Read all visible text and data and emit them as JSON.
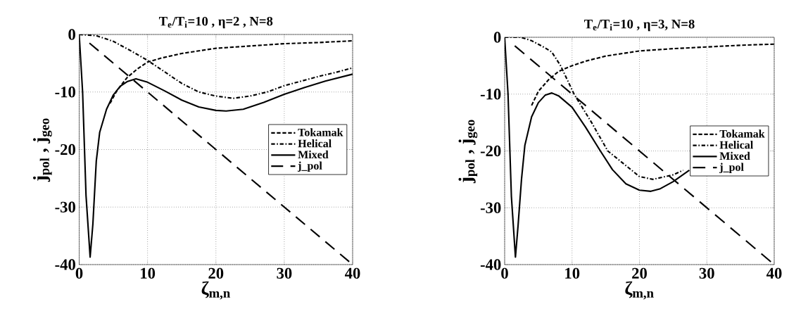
{
  "chart_data": [
    {
      "type": "line",
      "title": "T$_{e}$/T$_{i}$=10 , η=2 , N=8",
      "xlabel": "ζ$_{m,n}$",
      "ylabel": "j$_{pol}$ , j$_{geo}$",
      "xlim": [
        0,
        40
      ],
      "ylim": [
        -40,
        0
      ],
      "xticks": [
        0,
        10,
        20,
        30,
        40
      ],
      "yticks": [
        -40,
        -30,
        -20,
        -10,
        0
      ],
      "grid": true,
      "legend": "right",
      "series": [
        {
          "name": "Tokamak",
          "color": "#000000",
          "line_style": "dashed",
          "x": [
            4.5,
            5.5,
            7,
            8.5,
            10,
            12,
            15,
            20,
            25,
            30,
            35,
            40
          ],
          "values": [
            -12,
            -9.8,
            -7.5,
            -6,
            -4.8,
            -4.1,
            -3.3,
            -2.4,
            -2.0,
            -1.6,
            -1.4,
            -1.1
          ]
        },
        {
          "name": "Helical",
          "color": "#000000",
          "line_style": "dashdot",
          "x": [
            0,
            2.5,
            5,
            7.5,
            10,
            12.5,
            15,
            17.5,
            20,
            22.5,
            25,
            27.5,
            30,
            32.5,
            35,
            37.5,
            40
          ],
          "values": [
            0,
            -0.2,
            -1.2,
            -2.8,
            -4.5,
            -6.5,
            -8.5,
            -10,
            -10.7,
            -11.1,
            -10.7,
            -10,
            -8.9,
            -8.1,
            -7.3,
            -6.6,
            -5.8
          ]
        },
        {
          "name": "Mixed",
          "color": "#000000",
          "line_style": "solid",
          "x": [
            0,
            0.5,
            1,
            1.6,
            2,
            2.5,
            3,
            4,
            5,
            6,
            7,
            8.3,
            10,
            12.5,
            15,
            17.5,
            20,
            21.5,
            24,
            27,
            30,
            33,
            36,
            40
          ],
          "values": [
            0,
            -10,
            -28,
            -38.7,
            -33,
            -22,
            -17,
            -13,
            -10.5,
            -9,
            -8.2,
            -7.7,
            -8.3,
            -9.8,
            -11.4,
            -12.6,
            -13.2,
            -13.3,
            -13,
            -11.8,
            -10.4,
            -9.2,
            -8.1,
            -6.9
          ]
        },
        {
          "name": "j_pol",
          "color": "#000000",
          "line_style": "longdashed",
          "x": [
            1.5,
            39.5
          ],
          "values": [
            -1.5,
            -39.5
          ]
        }
      ]
    },
    {
      "type": "line",
      "title": "T$_{e}$/T$_{i}$=10 , η=3, N=8",
      "xlabel": "ζ$_{m,n}$",
      "ylabel": "j$_{pol}$ , j$_{geo}$",
      "xlim": [
        0,
        40
      ],
      "ylim": [
        -40,
        0
      ],
      "xticks": [
        0,
        10,
        20,
        30,
        40
      ],
      "yticks": [
        -40,
        -30,
        -20,
        -10,
        0
      ],
      "grid": true,
      "legend": "right",
      "series": [
        {
          "name": "Tokamak",
          "color": "#000000",
          "line_style": "dashed",
          "x": [
            4,
            5,
            6.5,
            8,
            10,
            12,
            15,
            20,
            25,
            30,
            35,
            40
          ],
          "values": [
            -12,
            -9.5,
            -7.5,
            -6,
            -5,
            -4.2,
            -3.3,
            -2.4,
            -2.0,
            -1.7,
            -1.4,
            -1.2
          ]
        },
        {
          "name": "Helical",
          "color": "#000000",
          "line_style": "dashdot",
          "x": [
            0,
            2.4,
            4,
            5.9,
            7,
            8.3,
            10.3,
            12.9,
            15.3,
            17.7,
            20,
            22,
            25,
            26.5
          ],
          "values": [
            0,
            0,
            -0.6,
            -1.8,
            -2.6,
            -5,
            -10,
            -15,
            -20,
            -22.3,
            -24.5,
            -25,
            -24.2,
            -23.4
          ]
        },
        {
          "name": "Mixed",
          "color": "#000000",
          "line_style": "solid",
          "x": [
            0,
            0.5,
            1,
            1.6,
            2,
            2.5,
            3,
            4,
            5,
            6,
            7,
            8,
            10,
            12,
            14.2,
            16,
            18,
            20,
            21.7,
            23,
            25,
            27.4
          ],
          "values": [
            0,
            -10,
            -28,
            -38.7,
            -33,
            -25,
            -19,
            -14,
            -11.5,
            -10.2,
            -9.8,
            -10.3,
            -12.3,
            -15.8,
            -20,
            -23.3,
            -25.8,
            -26.9,
            -27.1,
            -26.7,
            -25.4,
            -23.4
          ]
        },
        {
          "name": "j_pol",
          "color": "#000000",
          "line_style": "longdashed",
          "x": [
            1.5,
            39.5
          ],
          "values": [
            -1.5,
            -39.5
          ]
        }
      ]
    }
  ]
}
